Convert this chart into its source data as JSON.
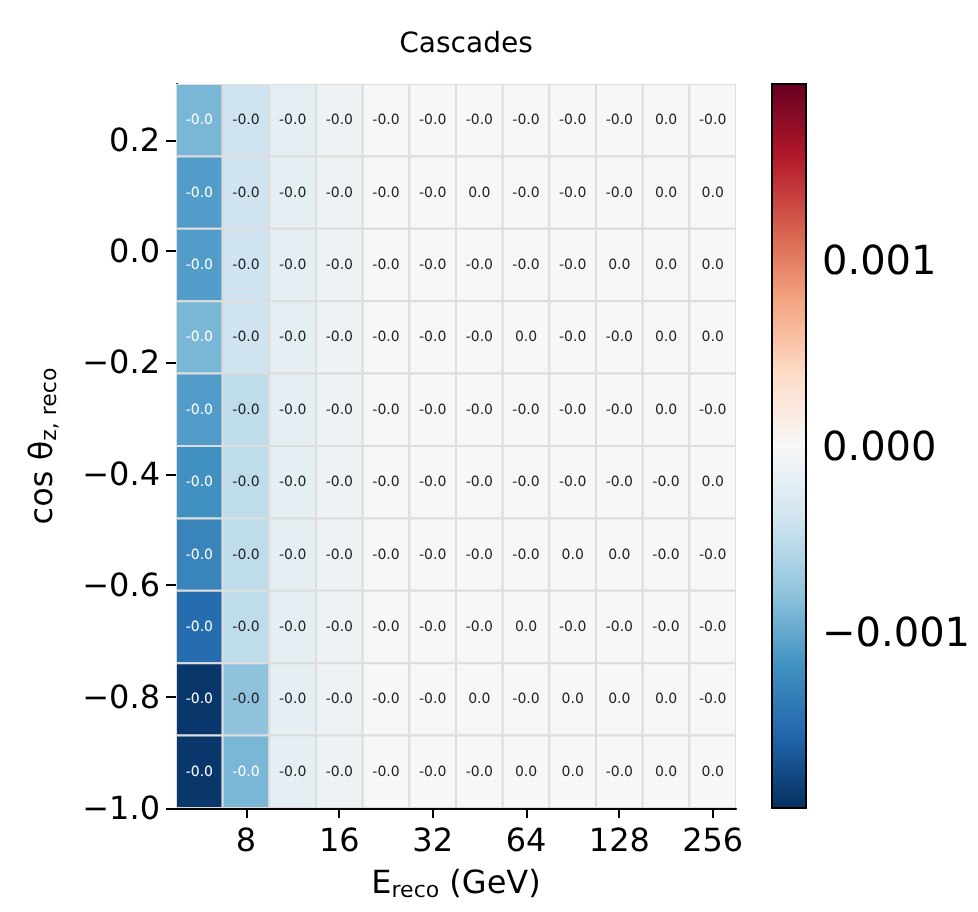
{
  "chart_data": {
    "type": "heatmap",
    "title": "Cascades",
    "xlabel": "E$_{reco}$ (GeV)",
    "ylabel": "cos θ$_{z, reco}$",
    "categories": [
      null,
      "8",
      null,
      "16",
      null,
      "32",
      null,
      "64",
      null,
      "128",
      null,
      "256"
    ],
    "ylim": [
      -1.0,
      0.3
    ],
    "yticks": [
      {
        "value": -1.0,
        "label": "−1.0"
      },
      {
        "value": -0.8,
        "label": "−0.8"
      },
      {
        "value": -0.6,
        "label": "−0.6"
      },
      {
        "value": -0.4,
        "label": "−0.4"
      },
      {
        "value": -0.2,
        "label": "−0.2"
      },
      {
        "value": 0.0,
        "label": "0.0"
      },
      {
        "value": 0.2,
        "label": "0.2"
      }
    ],
    "clabel": null,
    "clim": [
      -0.00195,
      0.00195
    ],
    "cticks": [
      {
        "value": -0.001,
        "label": "−0.001"
      },
      {
        "value": 0,
        "label": "0.000"
      },
      {
        "value": 0.001,
        "label": "0.001"
      }
    ],
    "cells": [
      [
        -0.0009,
        -0.0004,
        -0.0002,
        -0.0001,
        0,
        0,
        0,
        0,
        0,
        0,
        0,
        0
      ],
      [
        -0.0011,
        -0.0004,
        -0.0002,
        -0.0001,
        0,
        0,
        0,
        0,
        0,
        0,
        0,
        0
      ],
      [
        -0.0011,
        -0.0004,
        -0.0002,
        -0.0001,
        0,
        0,
        0,
        0,
        0,
        0,
        0,
        0
      ],
      [
        -0.0009,
        -0.0004,
        -0.0002,
        -0.0001,
        0,
        0,
        0,
        0,
        0,
        0,
        0,
        0
      ],
      [
        -0.0011,
        -0.0005,
        -0.0002,
        -0.0001,
        0,
        0,
        0,
        0,
        0,
        0,
        0,
        0
      ],
      [
        -0.0012,
        -0.0005,
        -0.0002,
        -0.0001,
        0,
        0,
        0,
        0,
        0,
        0,
        0,
        0
      ],
      [
        -0.0013,
        -0.0005,
        -0.0002,
        -0.0001,
        0,
        0,
        0,
        0,
        0,
        0,
        0,
        0
      ],
      [
        -0.0015,
        -0.0005,
        -0.0002,
        -0.0001,
        0,
        0,
        0,
        0,
        0,
        0,
        0,
        0
      ],
      [
        -0.0019,
        -0.0008,
        -0.0002,
        -0.0001,
        0,
        0,
        0,
        0,
        0,
        0,
        0,
        0
      ],
      [
        -0.0019,
        -0.0009,
        -0.0002,
        -0.0001,
        0,
        0,
        0,
        0,
        0,
        0,
        0,
        0
      ]
    ],
    "cell_labels": [
      [
        "-0.0",
        "-0.0",
        "-0.0",
        "-0.0",
        "-0.0",
        "-0.0",
        "-0.0",
        "-0.0",
        "-0.0",
        "-0.0",
        "0.0",
        "-0.0"
      ],
      [
        "-0.0",
        "-0.0",
        "-0.0",
        "-0.0",
        "-0.0",
        "-0.0",
        "0.0",
        "-0.0",
        "-0.0",
        "-0.0",
        "0.0",
        "0.0"
      ],
      [
        "-0.0",
        "-0.0",
        "-0.0",
        "-0.0",
        "-0.0",
        "-0.0",
        "-0.0",
        "-0.0",
        "-0.0",
        "0.0",
        "0.0",
        "0.0"
      ],
      [
        "-0.0",
        "-0.0",
        "-0.0",
        "-0.0",
        "-0.0",
        "-0.0",
        "-0.0",
        "0.0",
        "-0.0",
        "-0.0",
        "0.0",
        "0.0"
      ],
      [
        "-0.0",
        "-0.0",
        "-0.0",
        "-0.0",
        "-0.0",
        "-0.0",
        "-0.0",
        "-0.0",
        "-0.0",
        "-0.0",
        "0.0",
        "-0.0"
      ],
      [
        "-0.0",
        "-0.0",
        "-0.0",
        "-0.0",
        "-0.0",
        "-0.0",
        "-0.0",
        "-0.0",
        "-0.0",
        "-0.0",
        "-0.0",
        "0.0"
      ],
      [
        "-0.0",
        "-0.0",
        "-0.0",
        "-0.0",
        "-0.0",
        "-0.0",
        "-0.0",
        "-0.0",
        "0.0",
        "0.0",
        "-0.0",
        "-0.0"
      ],
      [
        "-0.0",
        "-0.0",
        "-0.0",
        "-0.0",
        "-0.0",
        "-0.0",
        "-0.0",
        "0.0",
        "-0.0",
        "-0.0",
        "-0.0",
        "-0.0"
      ],
      [
        "-0.0",
        "-0.0",
        "-0.0",
        "-0.0",
        "-0.0",
        "-0.0",
        "0.0",
        "-0.0",
        "0.0",
        "0.0",
        "0.0",
        "-0.0"
      ],
      [
        "-0.0",
        "-0.0",
        "-0.0",
        "-0.0",
        "-0.0",
        "-0.0",
        "-0.0",
        "0.0",
        "0.0",
        "-0.0",
        "0.0",
        "0.0"
      ]
    ]
  }
}
